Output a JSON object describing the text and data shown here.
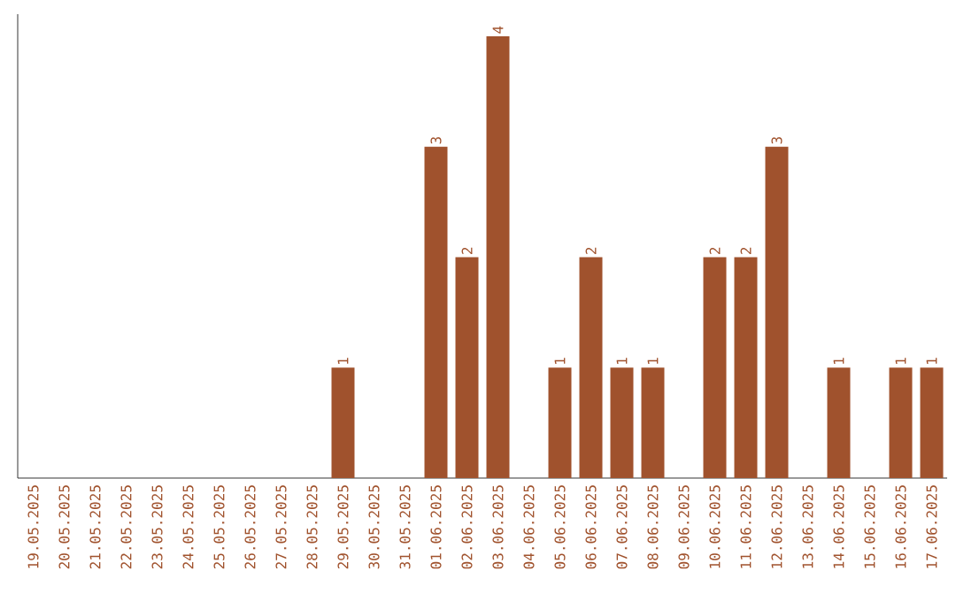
{
  "chart_data": {
    "type": "bar",
    "categories": [
      "19.05.2025",
      "20.05.2025",
      "21.05.2025",
      "22.05.2025",
      "23.05.2025",
      "24.05.2025",
      "25.05.2025",
      "26.05.2025",
      "27.05.2025",
      "28.05.2025",
      "29.05.2025",
      "30.05.2025",
      "31.05.2025",
      "01.06.2025",
      "02.06.2025",
      "03.06.2025",
      "04.06.2025",
      "05.06.2025",
      "06.06.2025",
      "07.06.2025",
      "08.06.2025",
      "09.06.2025",
      "10.06.2025",
      "11.06.2025",
      "12.06.2025",
      "13.06.2025",
      "14.06.2025",
      "15.06.2025",
      "16.06.2025",
      "17.06.2025"
    ],
    "values": [
      0,
      0,
      0,
      0,
      0,
      0,
      0,
      0,
      0,
      0,
      1,
      0,
      0,
      3,
      2,
      4,
      0,
      1,
      2,
      1,
      1,
      0,
      2,
      2,
      3,
      0,
      1,
      0,
      1,
      1
    ],
    "value_labels": [
      null,
      null,
      null,
      null,
      null,
      null,
      null,
      null,
      null,
      null,
      "1",
      null,
      null,
      "3",
      "2",
      "4",
      null,
      "1",
      "2",
      "1",
      "1",
      null,
      "2",
      "2",
      "3",
      null,
      "1",
      null,
      "1",
      "1"
    ],
    "color": "#a0522d",
    "grid": false
  }
}
